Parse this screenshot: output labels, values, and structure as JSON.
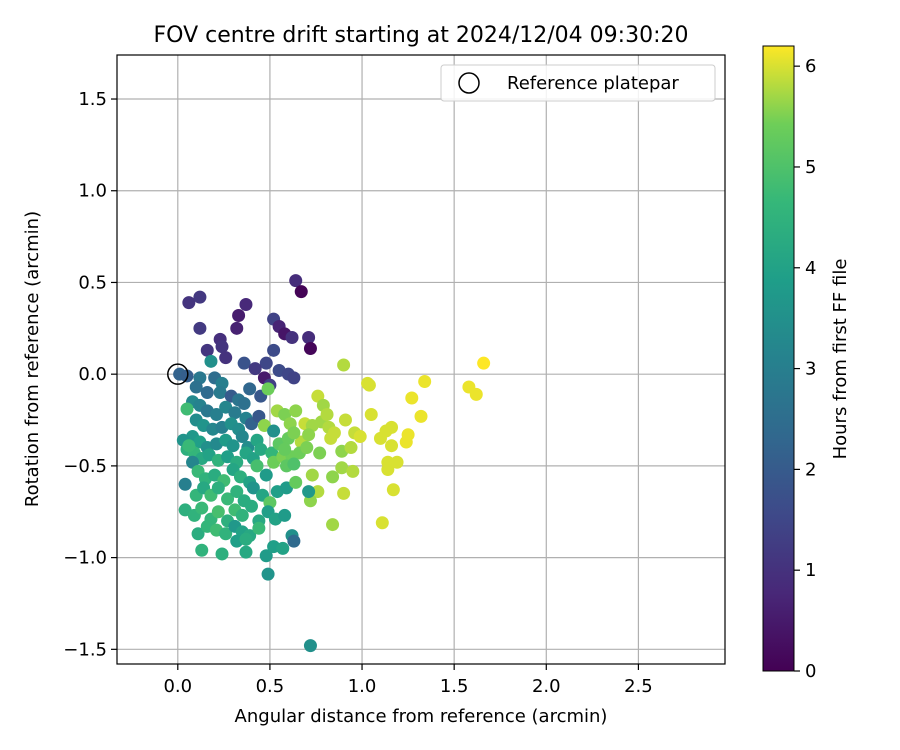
{
  "chart_data": {
    "type": "scatter",
    "title": "FOV centre drift starting at 2024/12/04 09:30:20",
    "xlabel": "Angular distance from reference (arcmin)",
    "ylabel": "Rotation from reference (arcmin)",
    "xlim": [
      -0.33,
      2.97
    ],
    "ylim": [
      -1.58,
      1.74
    ],
    "xticks": [
      0.0,
      0.5,
      1.0,
      1.5,
      2.0,
      2.5
    ],
    "xtick_labels": [
      "0.0",
      "0.5",
      "1.0",
      "1.5",
      "2.0",
      "2.5"
    ],
    "yticks": [
      -1.5,
      -1.0,
      -0.5,
      0.0,
      0.5,
      1.0,
      1.5
    ],
    "ytick_labels": [
      "−1.5",
      "−1.0",
      "−0.5",
      "0.0",
      "0.5",
      "1.0",
      "1.5"
    ],
    "grid": true,
    "legend": {
      "placement": "top-right",
      "entries": [
        "Reference platepar"
      ]
    },
    "reference_point": {
      "x": 0.0,
      "y": 0.0
    },
    "colorbar": {
      "label": "Hours from first FF file",
      "colormap": "viridis",
      "range": [
        0,
        6.2
      ],
      "ticks": [
        0,
        1,
        2,
        3,
        4,
        5,
        6
      ],
      "tick_labels": [
        "0",
        "1",
        "2",
        "3",
        "4",
        "5",
        "6"
      ]
    },
    "points": [
      [
        0.64,
        0.51,
        0.9
      ],
      [
        0.67,
        0.45,
        0.05
      ],
      [
        0.06,
        0.39,
        1.05
      ],
      [
        0.12,
        0.42,
        1.15
      ],
      [
        0.12,
        0.25,
        1.2
      ],
      [
        0.16,
        0.13,
        1.1
      ],
      [
        0.23,
        0.19,
        0.95
      ],
      [
        0.24,
        0.15,
        1.05
      ],
      [
        0.26,
        0.09,
        1.0
      ],
      [
        0.32,
        0.25,
        0.65
      ],
      [
        0.33,
        0.32,
        0.55
      ],
      [
        0.37,
        0.38,
        0.8
      ],
      [
        0.52,
        0.3,
        1.4
      ],
      [
        0.55,
        0.26,
        0.7
      ],
      [
        0.58,
        0.22,
        0.4
      ],
      [
        0.62,
        0.2,
        1.0
      ],
      [
        0.71,
        0.2,
        0.9
      ],
      [
        0.72,
        0.14,
        0.1
      ],
      [
        0.52,
        0.13,
        1.6
      ],
      [
        0.47,
        -0.02,
        0.5
      ],
      [
        0.48,
        0.06,
        1.5
      ],
      [
        0.36,
        0.06,
        1.8
      ],
      [
        0.42,
        0.03,
        1.2
      ],
      [
        0.55,
        0.02,
        1.6
      ],
      [
        0.6,
        0.0,
        1.5
      ],
      [
        0.63,
        -0.02,
        1.4
      ],
      [
        0.18,
        0.07,
        3.5
      ],
      [
        0.01,
        0.0,
        2.2
      ],
      [
        0.05,
        -0.01,
        2.1
      ],
      [
        0.12,
        -0.02,
        2.8
      ],
      [
        0.2,
        -0.02,
        2.5
      ],
      [
        0.24,
        -0.05,
        3.0
      ],
      [
        0.1,
        -0.07,
        2.6
      ],
      [
        0.16,
        -0.1,
        2.4
      ],
      [
        0.23,
        -0.1,
        2.9
      ],
      [
        0.29,
        -0.12,
        2.0
      ],
      [
        0.39,
        -0.08,
        2.3
      ],
      [
        0.33,
        -0.14,
        2.7
      ],
      [
        0.45,
        -0.12,
        1.9
      ],
      [
        0.5,
        -0.06,
        1.3
      ],
      [
        0.08,
        -0.15,
        3.3
      ],
      [
        0.12,
        -0.17,
        3.1
      ],
      [
        0.16,
        -0.2,
        2.8
      ],
      [
        0.21,
        -0.22,
        3.0
      ],
      [
        0.26,
        -0.18,
        3.2
      ],
      [
        0.31,
        -0.21,
        2.9
      ],
      [
        0.36,
        -0.16,
        2.6
      ],
      [
        0.37,
        -0.24,
        3.1
      ],
      [
        0.05,
        -0.19,
        4.8
      ],
      [
        0.1,
        -0.25,
        3.4
      ],
      [
        0.14,
        -0.28,
        3.6
      ],
      [
        0.19,
        -0.3,
        3.2
      ],
      [
        0.24,
        -0.29,
        3.0
      ],
      [
        0.29,
        -0.27,
        3.5
      ],
      [
        0.33,
        -0.3,
        3.4
      ],
      [
        0.4,
        -0.27,
        2.2
      ],
      [
        0.44,
        -0.23,
        1.9
      ],
      [
        0.08,
        -0.34,
        3.7
      ],
      [
        0.12,
        -0.37,
        3.9
      ],
      [
        0.16,
        -0.4,
        3.5
      ],
      [
        0.21,
        -0.38,
        3.3
      ],
      [
        0.26,
        -0.36,
        3.8
      ],
      [
        0.3,
        -0.39,
        3.6
      ],
      [
        0.35,
        -0.34,
        3.2
      ],
      [
        0.38,
        -0.4,
        3.4
      ],
      [
        0.43,
        -0.36,
        4.1
      ],
      [
        0.47,
        -0.28,
        5.6
      ],
      [
        0.52,
        -0.31,
        3.5
      ],
      [
        0.03,
        -0.36,
        3.6
      ],
      [
        0.05,
        -0.41,
        4.4
      ],
      [
        0.09,
        -0.43,
        4.6
      ],
      [
        0.13,
        -0.46,
        4.2
      ],
      [
        0.17,
        -0.44,
        4.0
      ],
      [
        0.22,
        -0.47,
        4.5
      ],
      [
        0.27,
        -0.45,
        3.9
      ],
      [
        0.32,
        -0.48,
        4.3
      ],
      [
        0.37,
        -0.43,
        4.1
      ],
      [
        0.41,
        -0.46,
        4.0
      ],
      [
        0.45,
        -0.41,
        4.2
      ],
      [
        0.51,
        -0.43,
        4.6
      ],
      [
        0.55,
        -0.38,
        5.2
      ],
      [
        0.06,
        -0.39,
        4.7
      ],
      [
        0.08,
        -0.48,
        3.2
      ],
      [
        0.11,
        -0.53,
        4.7
      ],
      [
        0.15,
        -0.57,
        4.5
      ],
      [
        0.2,
        -0.55,
        4.3
      ],
      [
        0.25,
        -0.58,
        4.8
      ],
      [
        0.3,
        -0.52,
        4.1
      ],
      [
        0.34,
        -0.56,
        4.4
      ],
      [
        0.39,
        -0.59,
        4.0
      ],
      [
        0.43,
        -0.5,
        4.9
      ],
      [
        0.48,
        -0.55,
        3.8
      ],
      [
        0.52,
        -0.48,
        5.4
      ],
      [
        0.57,
        -0.45,
        5.5
      ],
      [
        0.04,
        -0.6,
        3.0
      ],
      [
        0.1,
        -0.66,
        4.6
      ],
      [
        0.14,
        -0.62,
        4.2
      ],
      [
        0.18,
        -0.66,
        4.8
      ],
      [
        0.22,
        -0.62,
        4.4
      ],
      [
        0.27,
        -0.68,
        4.7
      ],
      [
        0.32,
        -0.64,
        4.5
      ],
      [
        0.36,
        -0.69,
        4.3
      ],
      [
        0.41,
        -0.62,
        3.6
      ],
      [
        0.46,
        -0.66,
        4.1
      ],
      [
        0.5,
        -0.7,
        5.2
      ],
      [
        0.54,
        -0.64,
        3.9
      ],
      [
        0.59,
        -0.62,
        3.8
      ],
      [
        0.04,
        -0.74,
        4.4
      ],
      [
        0.09,
        -0.77,
        4.5
      ],
      [
        0.13,
        -0.73,
        4.7
      ],
      [
        0.18,
        -0.79,
        4.6
      ],
      [
        0.22,
        -0.75,
        4.9
      ],
      [
        0.27,
        -0.8,
        4.4
      ],
      [
        0.31,
        -0.74,
        4.8
      ],
      [
        0.35,
        -0.77,
        4.5
      ],
      [
        0.4,
        -0.72,
        4.3
      ],
      [
        0.44,
        -0.8,
        4.2
      ],
      [
        0.49,
        -0.75,
        3.9
      ],
      [
        0.53,
        -0.79,
        4.0
      ],
      [
        0.58,
        -0.77,
        3.8
      ],
      [
        0.11,
        -0.87,
        4.3
      ],
      [
        0.16,
        -0.83,
        4.6
      ],
      [
        0.21,
        -0.85,
        4.8
      ],
      [
        0.26,
        -0.87,
        4.5
      ],
      [
        0.31,
        -0.83,
        3.7
      ],
      [
        0.35,
        -0.86,
        4.0
      ],
      [
        0.39,
        -0.88,
        4.2
      ],
      [
        0.44,
        -0.84,
        4.7
      ],
      [
        0.13,
        -0.96,
        4.5
      ],
      [
        0.24,
        -0.98,
        4.4
      ],
      [
        0.32,
        -0.91,
        3.9
      ],
      [
        0.37,
        -0.9,
        4.3
      ],
      [
        0.37,
        -0.97,
        4.2
      ],
      [
        0.48,
        -0.99,
        3.8
      ],
      [
        0.52,
        -0.94,
        3.9
      ],
      [
        0.57,
        -0.95,
        4.0
      ],
      [
        0.62,
        -0.88,
        3.5
      ],
      [
        0.63,
        -0.91,
        2.4
      ],
      [
        0.49,
        -1.09,
        3.6
      ],
      [
        0.72,
        -1.48,
        3.5
      ],
      [
        0.49,
        -0.08,
        5.4
      ],
      [
        0.54,
        -0.2,
        5.7
      ],
      [
        0.58,
        -0.22,
        5.5
      ],
      [
        0.61,
        -0.27,
        5.6
      ],
      [
        0.64,
        -0.2,
        5.6
      ],
      [
        0.69,
        -0.27,
        5.9
      ],
      [
        0.73,
        -0.28,
        5.7
      ],
      [
        0.67,
        -0.37,
        5.8
      ],
      [
        0.6,
        -0.35,
        5.3
      ],
      [
        0.63,
        -0.32,
        5.5
      ],
      [
        0.66,
        -0.43,
        5.4
      ],
      [
        0.62,
        -0.45,
        5.4
      ],
      [
        0.58,
        -0.41,
        5.3
      ],
      [
        0.59,
        -0.5,
        5.2
      ],
      [
        0.63,
        -0.49,
        5.0
      ],
      [
        0.64,
        -0.59,
        5.3
      ],
      [
        0.7,
        -0.4,
        5.5
      ],
      [
        0.71,
        -0.33,
        5.6
      ],
      [
        0.76,
        -0.12,
        5.9
      ],
      [
        0.78,
        -0.26,
        5.7
      ],
      [
        0.79,
        -0.17,
        5.7
      ],
      [
        0.81,
        -0.22,
        5.8
      ],
      [
        0.82,
        -0.29,
        5.8
      ],
      [
        0.83,
        -0.35,
        5.9
      ],
      [
        0.77,
        -0.43,
        5.5
      ],
      [
        0.73,
        -0.55,
        5.7
      ],
      [
        0.76,
        -0.64,
        5.8
      ],
      [
        0.72,
        -0.69,
        5.6
      ],
      [
        0.71,
        -0.64,
        3.7
      ],
      [
        0.85,
        -0.32,
        5.9
      ],
      [
        0.84,
        -0.56,
        5.6
      ],
      [
        0.84,
        -0.82,
        5.7
      ],
      [
        0.89,
        -0.42,
        5.6
      ],
      [
        0.89,
        -0.51,
        5.7
      ],
      [
        0.9,
        -0.65,
        5.9
      ],
      [
        0.91,
        -0.25,
        5.9
      ],
      [
        0.9,
        0.05,
        5.8
      ],
      [
        0.94,
        -0.4,
        5.8
      ],
      [
        0.95,
        -0.53,
        5.8
      ],
      [
        0.96,
        -0.32,
        5.9
      ],
      [
        0.99,
        -0.34,
        6.0
      ],
      [
        1.03,
        -0.05,
        6.0
      ],
      [
        1.04,
        -0.06,
        6.0
      ],
      [
        1.05,
        -0.22,
        6.0
      ],
      [
        1.1,
        -0.35,
        6.0
      ],
      [
        1.11,
        -0.81,
        6.0
      ],
      [
        1.13,
        -0.31,
        6.0
      ],
      [
        1.14,
        -0.52,
        6.0
      ],
      [
        1.14,
        -0.48,
        6.0
      ],
      [
        1.16,
        -0.29,
        6.0
      ],
      [
        1.16,
        -0.39,
        6.0
      ],
      [
        1.17,
        -0.63,
        6.0
      ],
      [
        1.19,
        -0.48,
        6.0
      ],
      [
        1.24,
        -0.37,
        6.1
      ],
      [
        1.25,
        -0.33,
        6.1
      ],
      [
        1.27,
        -0.13,
        6.1
      ],
      [
        1.32,
        -0.23,
        6.1
      ],
      [
        1.34,
        -0.04,
        6.1
      ],
      [
        1.58,
        -0.07,
        6.1
      ],
      [
        1.62,
        -0.11,
        6.1
      ],
      [
        1.66,
        0.06,
        6.2
      ]
    ]
  }
}
